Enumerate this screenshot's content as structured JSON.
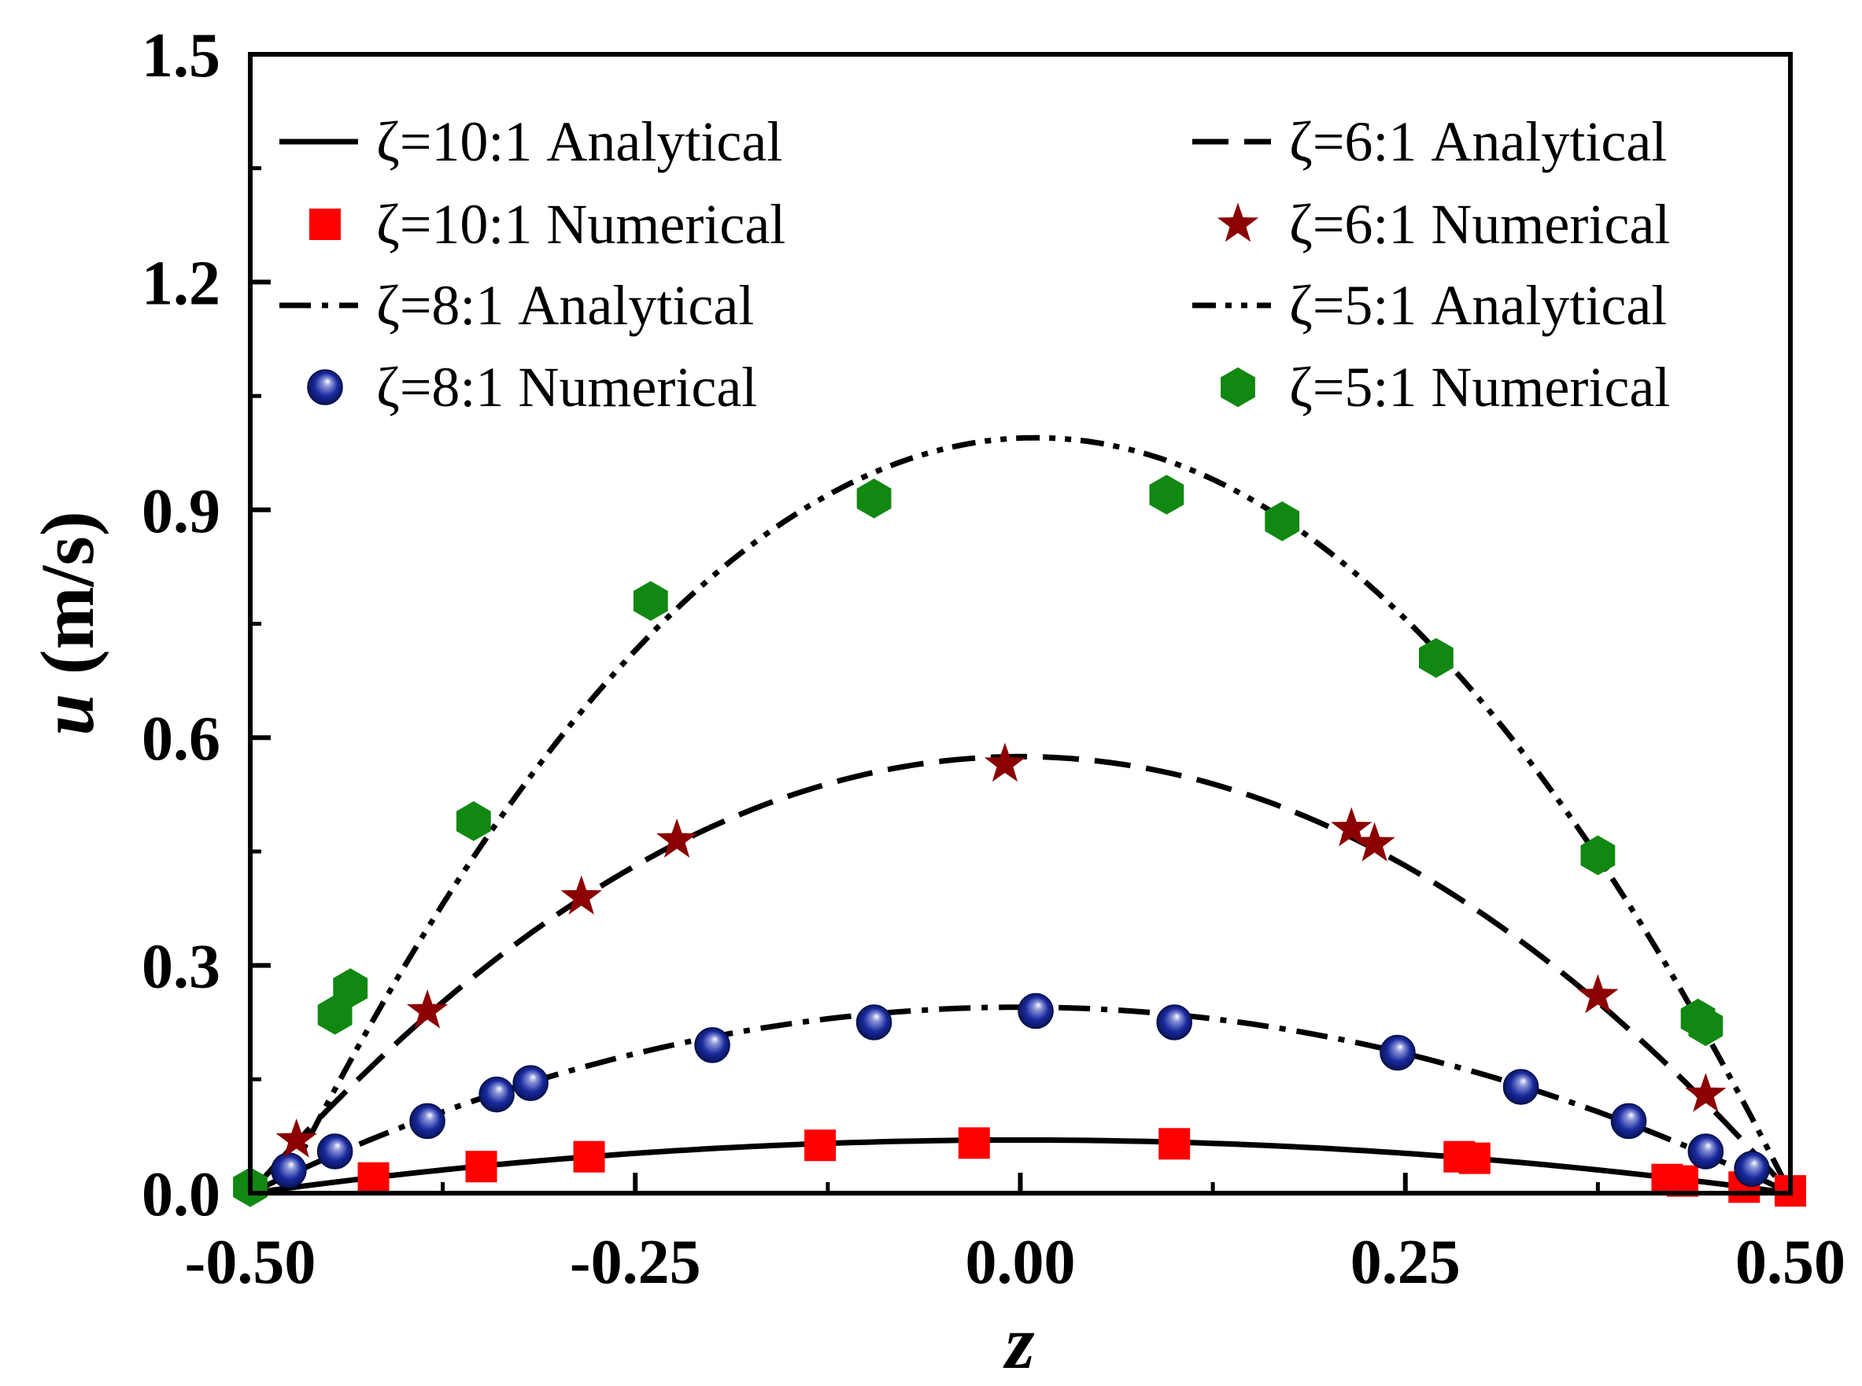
{
  "chart_data": {
    "type": "line",
    "title": "",
    "xlabel": "z",
    "ylabel_var": "u",
    "ylabel_unit": "(m/s)",
    "xlim": [
      -0.5,
      0.5
    ],
    "ylim": [
      0.0,
      1.5
    ],
    "xticks": [
      -0.5,
      -0.25,
      0.0,
      0.25,
      0.5
    ],
    "xtick_labels": [
      "-0.50",
      "-0.25",
      "0.00",
      "0.25",
      "0.50"
    ],
    "yticks": [
      0.0,
      0.3,
      0.6,
      0.9,
      1.2,
      1.5
    ],
    "ytick_labels": [
      "0.0",
      "0.3",
      "0.6",
      "0.9",
      "1.2",
      "1.5"
    ],
    "grid": false,
    "series": [
      {
        "name": "ζ=10:1 Analytical",
        "kind": "line",
        "style": "solid",
        "color": "#000000",
        "peak": 0.07,
        "z_range": [
          -0.5,
          0.5
        ]
      },
      {
        "name": "ζ=10:1 Numerical",
        "kind": "marker",
        "marker": "square",
        "color": "#ff0000",
        "x": [
          -0.42,
          -0.35,
          -0.28,
          -0.13,
          -0.03,
          0.1,
          0.285,
          0.295,
          0.42,
          0.43,
          0.47,
          0.5
        ],
        "y": [
          0.02,
          0.035,
          0.048,
          0.063,
          0.066,
          0.065,
          0.048,
          0.046,
          0.018,
          0.016,
          0.008,
          0.003
        ]
      },
      {
        "name": "ζ=8:1 Analytical",
        "kind": "line",
        "style": "dashdot",
        "color": "#000000",
        "peak": 0.245,
        "z_range": [
          -0.5,
          0.5
        ]
      },
      {
        "name": "ζ=8:1 Numerical",
        "kind": "marker",
        "marker": "sphere",
        "color": "#0a1a8c",
        "x": [
          -0.475,
          -0.445,
          -0.385,
          -0.34,
          -0.318,
          -0.2,
          -0.095,
          0.01,
          0.1,
          0.245,
          0.325,
          0.395,
          0.445,
          0.475
        ],
        "y": [
          0.03,
          0.055,
          0.095,
          0.13,
          0.145,
          0.195,
          0.225,
          0.24,
          0.225,
          0.185,
          0.14,
          0.095,
          0.055,
          0.032
        ]
      },
      {
        "name": "ζ=6:1 Analytical",
        "kind": "line",
        "style": "longdash",
        "color": "#000000",
        "peak": 0.575,
        "z_range": [
          -0.5,
          0.5
        ]
      },
      {
        "name": "ζ=6:1 Numerical",
        "kind": "marker",
        "marker": "star",
        "color": "#8b0000",
        "x": [
          -0.47,
          -0.385,
          -0.285,
          -0.223,
          -0.01,
          0.215,
          0.23,
          0.375,
          0.445
        ],
        "y": [
          0.07,
          0.24,
          0.39,
          0.465,
          0.565,
          0.48,
          0.46,
          0.26,
          0.13
        ]
      },
      {
        "name": "ζ=5:1 Analytical",
        "kind": "line",
        "style": "dashdotdot",
        "color": "#000000",
        "peak": 0.995,
        "z_range": [
          -0.48,
          0.5
        ]
      },
      {
        "name": "ζ=5:1 Numerical",
        "kind": "marker",
        "marker": "hexagon",
        "color": "#118811",
        "x": [
          -0.5,
          -0.445,
          -0.435,
          -0.355,
          -0.24,
          -0.095,
          0.095,
          0.17,
          0.27,
          0.375,
          0.44,
          0.445
        ],
        "y": [
          0.008,
          0.235,
          0.27,
          0.49,
          0.78,
          0.915,
          0.92,
          0.885,
          0.705,
          0.445,
          0.23,
          0.22
        ]
      }
    ]
  }
}
